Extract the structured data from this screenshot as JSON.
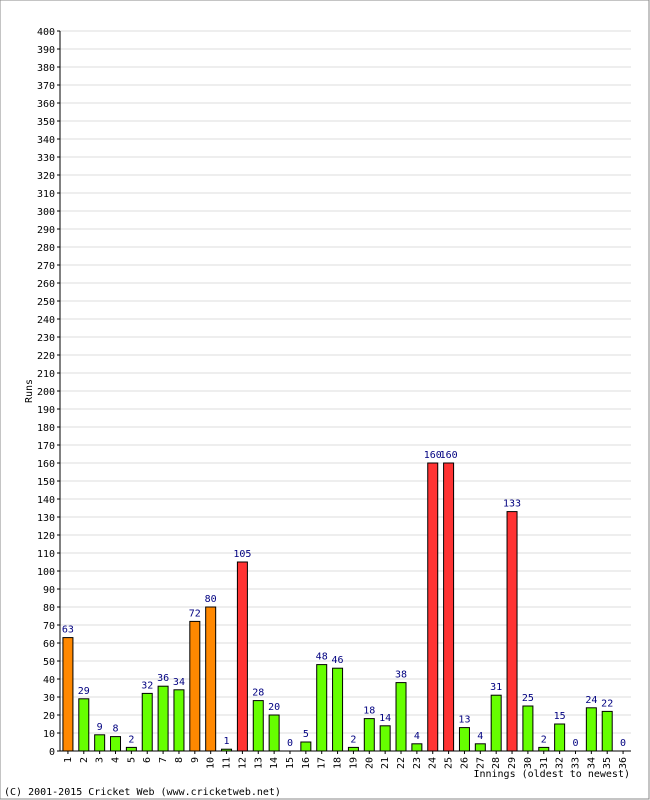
{
  "chart_data": {
    "type": "bar",
    "title": "",
    "xlabel": "Innings (oldest to newest)",
    "ylabel": "Runs",
    "ylim": [
      0,
      400
    ],
    "ytick_step": 10,
    "grid": true,
    "categories": [
      "1",
      "2",
      "3",
      "4",
      "5",
      "6",
      "7",
      "8",
      "9",
      "10",
      "11",
      "12",
      "13",
      "14",
      "15",
      "16",
      "17",
      "18",
      "19",
      "20",
      "21",
      "22",
      "23",
      "24",
      "25",
      "26",
      "27",
      "28",
      "29",
      "30",
      "31",
      "32",
      "33",
      "34",
      "35",
      "36"
    ],
    "values": [
      63,
      29,
      9,
      8,
      2,
      32,
      36,
      34,
      72,
      80,
      1,
      105,
      28,
      20,
      0,
      5,
      48,
      46,
      2,
      18,
      14,
      38,
      4,
      160,
      160,
      13,
      4,
      31,
      133,
      25,
      2,
      15,
      0,
      24,
      22,
      0
    ],
    "bar_colors": {
      "under_50": "#66ff00",
      "fifty": "#ff8800",
      "hundred": "#ff3333"
    },
    "data_label_color": "#000080"
  },
  "footer": {
    "copyright": "(C) 2001-2015 Cricket Web (www.cricketweb.net)"
  }
}
